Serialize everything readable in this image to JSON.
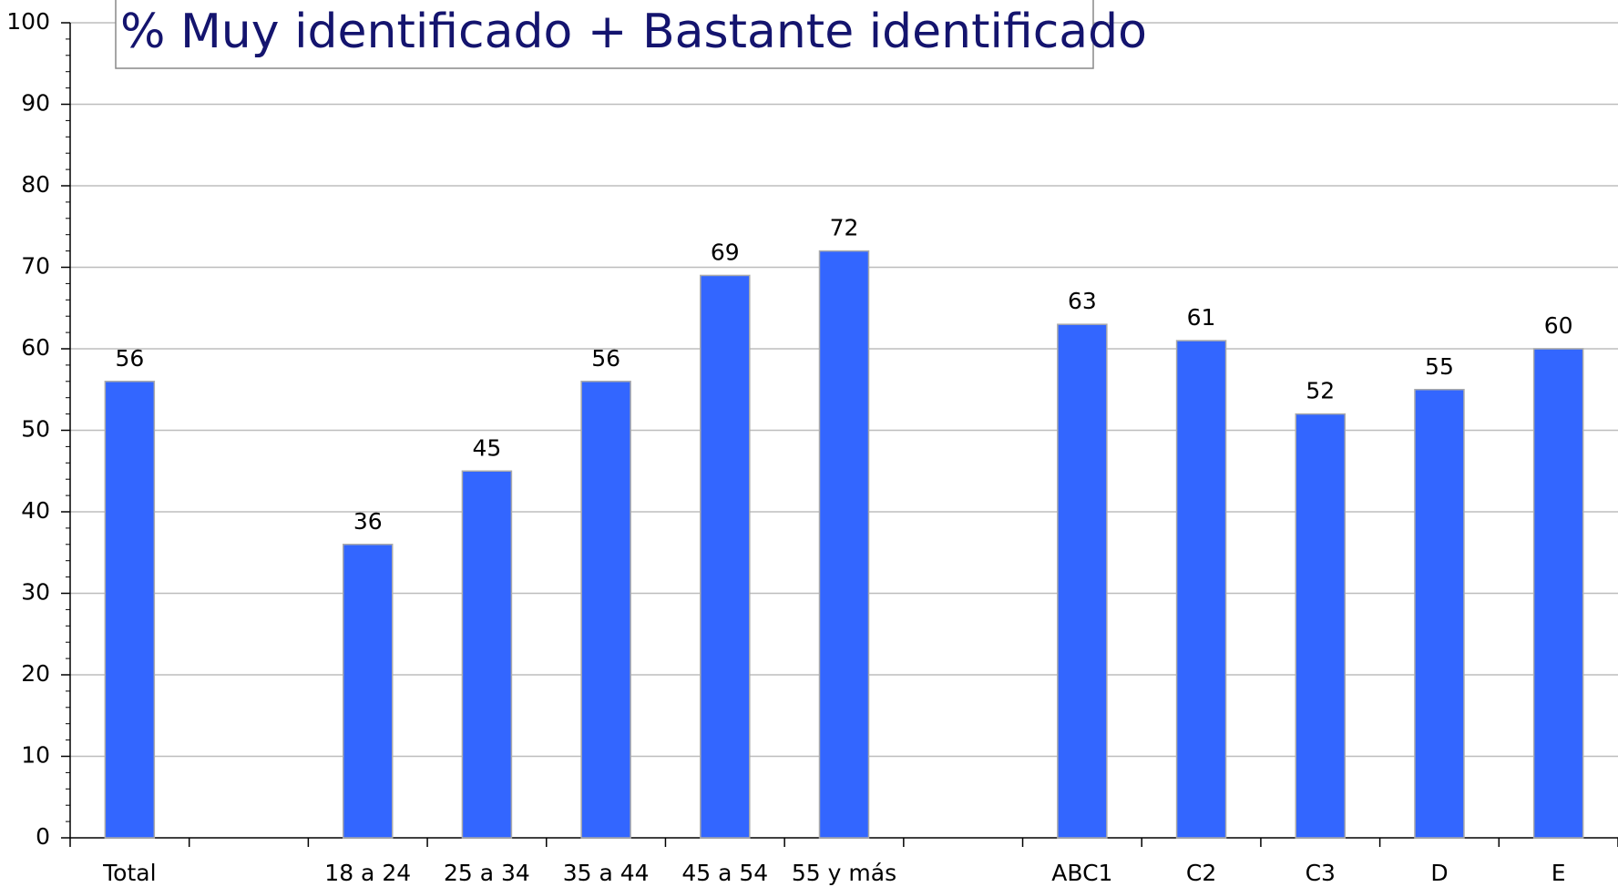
{
  "chart_data": {
    "type": "bar",
    "title": "% Muy identificado + Bastante identificado",
    "categories": [
      "Total",
      null,
      "18 a 24",
      "25 a 34",
      "35 a 44",
      "45 a 54",
      "55 y más",
      null,
      "ABC1",
      "C2",
      "C3",
      "D",
      "E"
    ],
    "values": [
      56,
      null,
      36,
      45,
      56,
      69,
      72,
      null,
      63,
      61,
      52,
      55,
      60
    ],
    "color": "#3366ff",
    "ylim": [
      0,
      100
    ],
    "yticks": [
      0,
      10,
      20,
      30,
      40,
      50,
      60,
      70,
      80,
      90,
      100
    ],
    "grid": true
  }
}
